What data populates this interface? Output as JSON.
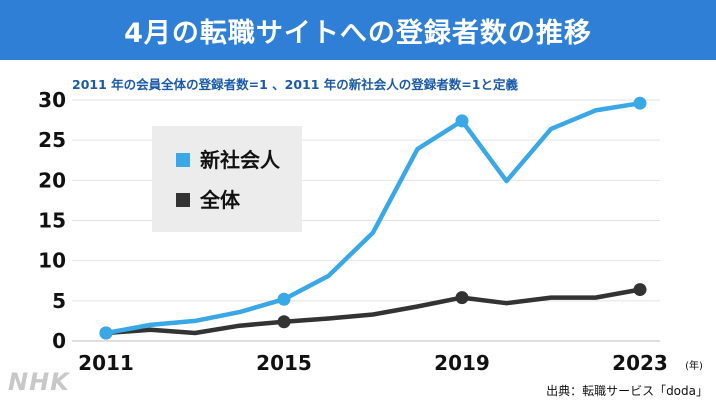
{
  "title": "4月の転職サイトへの登録者数の推移",
  "subtitle": "2011 年の会員全体の登録者数=1 、2011 年の新社会人の登録者数=1と定義",
  "logo": "NHK",
  "source": "出典：転職サービス「doda」",
  "colors": {
    "title_bg": "#2f7fd6",
    "series_new": "#3aa8e6",
    "series_all": "#333333",
    "legend_bg": "#ececec"
  },
  "chart_data": {
    "type": "line",
    "x": [
      2011,
      2012,
      2013,
      2014,
      2015,
      2016,
      2017,
      2018,
      2019,
      2020,
      2021,
      2022,
      2023
    ],
    "xticks": [
      "2011",
      "2015",
      "2019",
      "2023"
    ],
    "xunit": "(年)",
    "ylim": [
      0,
      30
    ],
    "yticks": [
      "0",
      "5",
      "10",
      "15",
      "20",
      "25",
      "30"
    ],
    "grid": true,
    "legend_position": "upper-left",
    "series": [
      {
        "name": "新社会人",
        "color": "#3aa8e6",
        "values": [
          1,
          2.0,
          2.5,
          3.6,
          5.2,
          8.1,
          13.5,
          23.9,
          27.4,
          19.9,
          26.4,
          28.7,
          29.6
        ],
        "markers": [
          2011,
          2015,
          2019,
          2023
        ]
      },
      {
        "name": "全体",
        "color": "#333333",
        "values": [
          1,
          1.4,
          1.0,
          1.9,
          2.4,
          2.8,
          3.3,
          4.3,
          5.4,
          4.7,
          5.4,
          5.4,
          6.4
        ],
        "markers": [
          2011,
          2015,
          2019,
          2023
        ]
      }
    ]
  }
}
